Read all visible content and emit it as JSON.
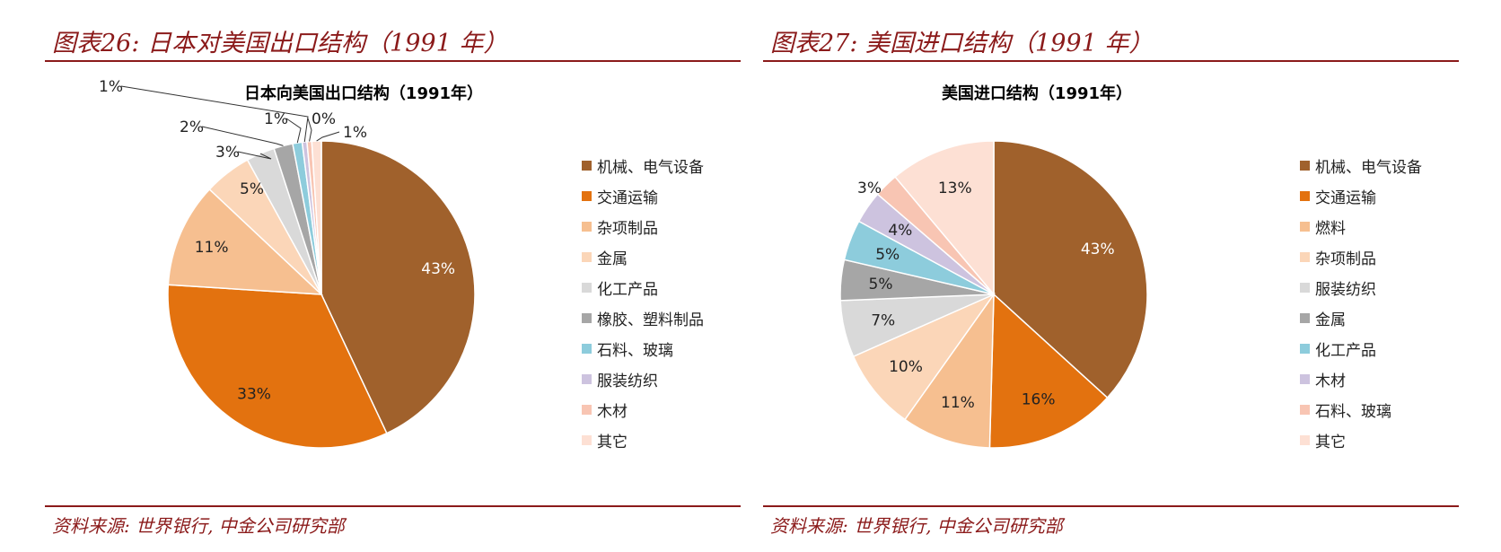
{
  "charts": [
    {
      "figure_title": "图表26: 日本对美国出口结构（1991 年）",
      "source": "资料来源: 世界银行, 中金公司研究部"
    },
    {
      "figure_title": "图表27: 美国进口结构（1991 年）",
      "source": "资料来源: 世界银行, 中金公司研究部"
    }
  ],
  "chart_data": [
    {
      "type": "pie",
      "title": "日本向美国出口结构（1991年）",
      "categories": [
        "机械、电气设备",
        "交通运输",
        "杂项制品",
        "金属",
        "化工产品",
        "橡胶、塑料制品",
        "石料、玻璃",
        "服装纺织",
        "木材",
        "其它"
      ],
      "values": [
        43,
        33,
        11,
        5,
        3,
        2,
        1,
        0.5,
        0.5,
        1
      ],
      "labels": [
        "43%",
        "33%",
        "11%",
        "5%",
        "3%",
        "2%",
        "1%",
        "1%",
        "0%",
        "1%"
      ],
      "colors": [
        "#a0612c",
        "#e3720f",
        "#f6bf90",
        "#fbd6b8",
        "#d9d9d9",
        "#a6a6a6",
        "#8dccdc",
        "#cdc3df",
        "#f8c5b3",
        "#fde0d4"
      ],
      "legend_position": "right"
    },
    {
      "type": "pie",
      "title": "美国进口结构（1991年）",
      "categories": [
        "机械、电气设备",
        "交通运输",
        "燃料",
        "杂项制品",
        "服装纺织",
        "金属",
        "化工产品",
        "木材",
        "石料、玻璃",
        "其它"
      ],
      "values": [
        43,
        16,
        11,
        10,
        7,
        5,
        5,
        4,
        3,
        13
      ],
      "labels": [
        "43%",
        "16%",
        "11%",
        "10%",
        "7%",
        "5%",
        "5%",
        "4%",
        "3%",
        "13%"
      ],
      "colors": [
        "#a0612c",
        "#e3720f",
        "#f6bf90",
        "#fbd6b8",
        "#d9d9d9",
        "#a6a6a6",
        "#8dccdc",
        "#cdc3df",
        "#f8c5b3",
        "#fde0d4"
      ],
      "legend_position": "right"
    }
  ]
}
